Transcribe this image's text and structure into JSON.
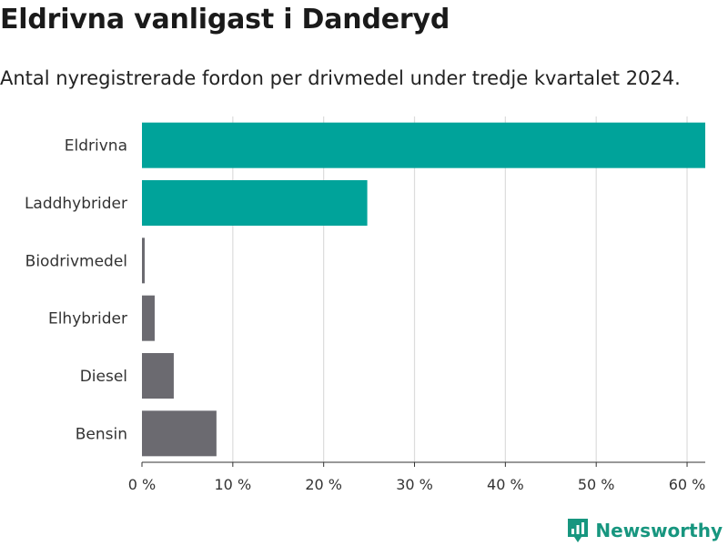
{
  "chart_data": {
    "type": "bar",
    "orientation": "horizontal",
    "title": "Eldrivna vanligast i Danderyd",
    "subtitle": "Antal nyregistrerade fordon per drivmedel under tredje kvartalet 2024.",
    "categories": [
      "Eldrivna",
      "Laddhybrider",
      "Biodrivmedel",
      "Elhybrider",
      "Diesel",
      "Bensin"
    ],
    "values": [
      62,
      24.8,
      0.3,
      1.4,
      3.5,
      8.2
    ],
    "colors": [
      "#00a39a",
      "#00a39a",
      "#6b6a70",
      "#6b6a70",
      "#6b6a70",
      "#6b6a70"
    ],
    "xlim": [
      0,
      62
    ],
    "xticks": [
      0,
      10,
      20,
      30,
      40,
      50,
      60
    ],
    "xtick_labels": [
      "0 %",
      "10 %",
      "20 %",
      "30 %",
      "40 %",
      "50 %",
      "60 %"
    ],
    "xlabel": "",
    "ylabel": "",
    "grid": true
  },
  "brand": {
    "name": "Newsworthy",
    "color": "#17967f"
  }
}
